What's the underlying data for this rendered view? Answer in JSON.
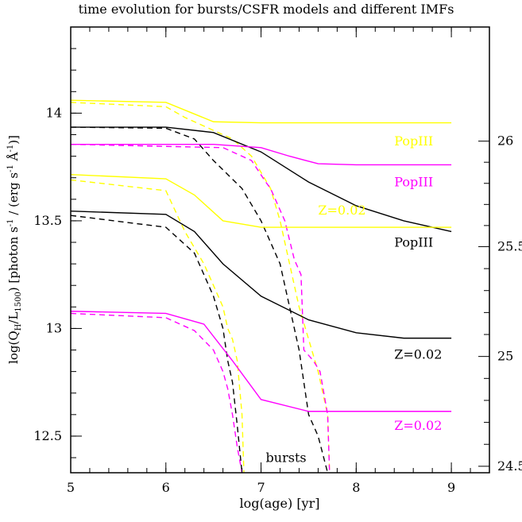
{
  "chart_data": {
    "type": "line",
    "title": "time evolution for bursts/CSFR models and different IMFs",
    "xlabel": "log(age) [yr]",
    "ylabel": "log(Q_H/L_1500) [photon s^-1 / (erg s^-1 Å^-1)]",
    "ylabel_parts": {
      "a": "log(Q",
      "b": "H",
      "c": "/L",
      "d": "1500",
      "e": ") [photon s",
      "f": "-1",
      "g": " / (erg s",
      "h": "-1",
      "i": " Å",
      "j": "-1",
      "k": ")]"
    },
    "xlim": [
      5,
      9.4
    ],
    "ylim": [
      12.33,
      14.4
    ],
    "xticks": [
      5,
      6,
      7,
      8,
      9
    ],
    "yticks": [
      12.5,
      13,
      13.5,
      14
    ],
    "right_ticks": [
      "26",
      "25.5",
      "25",
      "24.5"
    ],
    "right_tick_values": [
      13.87,
      13.38,
      12.87,
      12.36
    ],
    "colors": {
      "yellow": "#ffff00",
      "magenta": "#ff00ff",
      "black": "#000000"
    },
    "series": [
      {
        "color": "yellow",
        "dash": false,
        "x": [
          5,
          6,
          6.5,
          7,
          8,
          9
        ],
        "y": [
          14.06,
          14.05,
          13.96,
          13.955,
          13.955,
          13.955
        ]
      },
      {
        "color": "yellow",
        "dash": true,
        "x": [
          5,
          6,
          6.2,
          6.5,
          6.7,
          6.9,
          7.1,
          7.2,
          7.3,
          7.4,
          7.5,
          7.6,
          7.7,
          7.72
        ],
        "y": [
          14.05,
          14.03,
          13.98,
          13.92,
          13.88,
          13.8,
          13.65,
          13.5,
          13.3,
          13.1,
          12.95,
          12.8,
          12.6,
          12.33
        ]
      },
      {
        "color": "black",
        "dash": false,
        "x": [
          5,
          6,
          6.5,
          7,
          7.5,
          8,
          8.5,
          9
        ],
        "y": [
          13.935,
          13.935,
          13.91,
          13.82,
          13.68,
          13.57,
          13.5,
          13.45
        ]
      },
      {
        "color": "black",
        "dash": true,
        "x": [
          5,
          6,
          6.3,
          6.5,
          6.8,
          7,
          7.1,
          7.2,
          7.3,
          7.4,
          7.45,
          7.5,
          7.6,
          7.7
        ],
        "y": [
          13.935,
          13.93,
          13.88,
          13.78,
          13.65,
          13.5,
          13.4,
          13.3,
          13.1,
          12.9,
          12.75,
          12.6,
          12.5,
          12.33
        ]
      },
      {
        "color": "magenta",
        "dash": false,
        "x": [
          5,
          6.5,
          7,
          7.3,
          7.6,
          8,
          9
        ],
        "y": [
          13.855,
          13.855,
          13.84,
          13.8,
          13.765,
          13.76,
          13.76
        ]
      },
      {
        "color": "magenta",
        "dash": true,
        "x": [
          5,
          6.6,
          6.9,
          7.05,
          7.1,
          7.2,
          7.25,
          7.35,
          7.42,
          7.45,
          7.55,
          7.62,
          7.7,
          7.72
        ],
        "y": [
          13.855,
          13.84,
          13.78,
          13.68,
          13.65,
          13.55,
          13.5,
          13.32,
          13.25,
          12.9,
          12.85,
          12.8,
          12.6,
          12.33
        ]
      },
      {
        "color": "yellow",
        "dash": false,
        "x": [
          5,
          6,
          6.3,
          6.6,
          7,
          8,
          9
        ],
        "y": [
          13.715,
          13.695,
          13.62,
          13.5,
          13.47,
          13.47,
          13.47
        ]
      },
      {
        "color": "yellow",
        "dash": true,
        "x": [
          5,
          6,
          6.2,
          6.4,
          6.5,
          6.6,
          6.65,
          6.7,
          6.75,
          6.8,
          6.82
        ],
        "y": [
          13.69,
          13.64,
          13.45,
          13.3,
          13.2,
          13.1,
          13.0,
          12.95,
          12.85,
          12.6,
          12.33
        ]
      },
      {
        "color": "black",
        "dash": false,
        "x": [
          5,
          6,
          6.3,
          6.6,
          7,
          7.5,
          8,
          8.5,
          9
        ],
        "y": [
          13.545,
          13.53,
          13.45,
          13.3,
          13.15,
          13.04,
          12.98,
          12.955,
          12.955
        ]
      },
      {
        "color": "black",
        "dash": true,
        "x": [
          5,
          6,
          6.3,
          6.5,
          6.6,
          6.65,
          6.7,
          6.75,
          6.8
        ],
        "y": [
          13.525,
          13.47,
          13.35,
          13.15,
          13.0,
          12.85,
          12.75,
          12.55,
          12.33
        ]
      },
      {
        "color": "magenta",
        "dash": false,
        "x": [
          5,
          6,
          6.4,
          6.7,
          7,
          7.5,
          8,
          9
        ],
        "y": [
          13.08,
          13.07,
          13.02,
          12.85,
          12.67,
          12.615,
          12.615,
          12.615
        ]
      },
      {
        "color": "magenta",
        "dash": true,
        "x": [
          5,
          6,
          6.3,
          6.5,
          6.6,
          6.65,
          6.7,
          6.75,
          6.8
        ],
        "y": [
          13.07,
          13.05,
          12.99,
          12.9,
          12.8,
          12.72,
          12.6,
          12.45,
          12.33
        ]
      }
    ],
    "annotations": [
      {
        "text": "PopIII",
        "color": "yellow",
        "x": 8.4,
        "y": 13.85
      },
      {
        "text": "PopIII",
        "color": "magenta",
        "x": 8.4,
        "y": 13.66
      },
      {
        "text": "Z=0.02",
        "color": "yellow",
        "x": 7.6,
        "y": 13.53
      },
      {
        "text": "PopIII",
        "color": "black",
        "x": 8.4,
        "y": 13.38
      },
      {
        "text": "Z=0.02",
        "color": "black",
        "x": 8.4,
        "y": 12.86
      },
      {
        "text": "Z=0.02",
        "color": "magenta",
        "x": 8.4,
        "y": 12.53
      },
      {
        "text": "bursts",
        "color": "black",
        "x": 7.05,
        "y": 12.38
      }
    ]
  }
}
